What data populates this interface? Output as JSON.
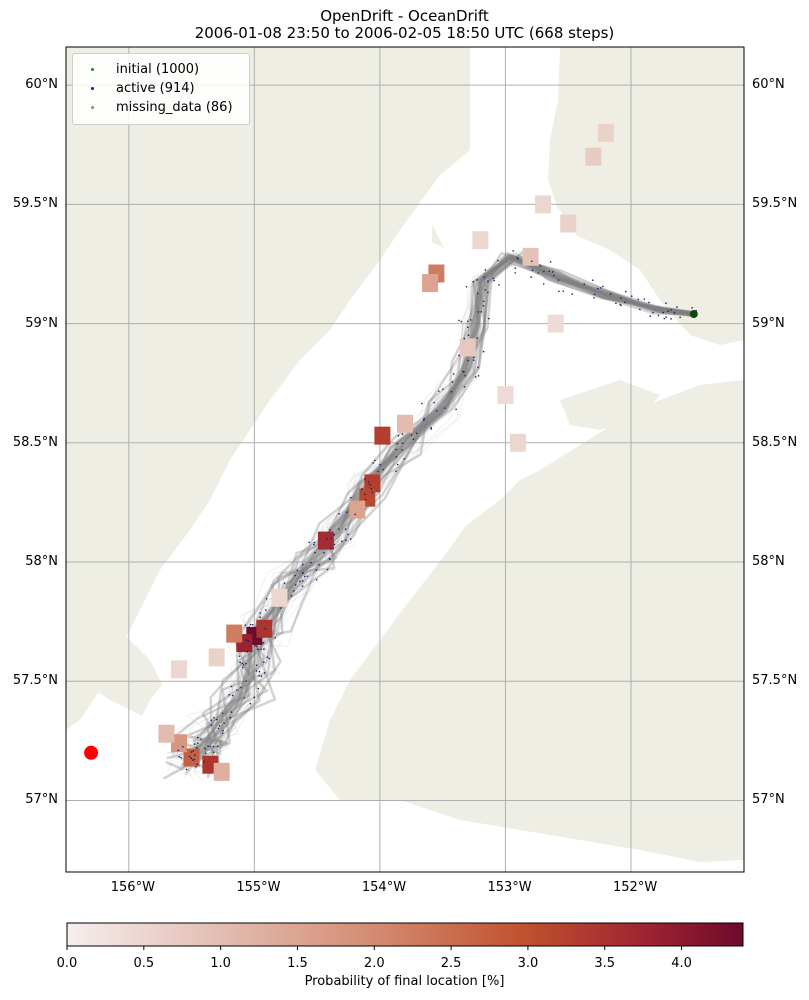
{
  "title": {
    "line1": "OpenDrift - OceanDrift",
    "line2": "2006-01-08 23:50 to 2006-02-05 18:50 UTC (668 steps)"
  },
  "map": {
    "lon_range": [
      -156.5,
      -151.1
    ],
    "lat_range": [
      56.7,
      60.16
    ],
    "lon_ticks": [
      "156°W",
      "155°W",
      "154°W",
      "153°W",
      "152°W"
    ],
    "lat_ticks": [
      "60°N",
      "59.5°N",
      "59°N",
      "58.5°N",
      "58°N",
      "57.5°N",
      "57°N"
    ],
    "grid": true,
    "colors": {
      "land": "#eeeee4",
      "ocean": "#ffffff",
      "grid": "#b0b0b0",
      "trajectory": "#808080",
      "active_particle": "#1a1a66",
      "seed_marker": "#ff0000",
      "initial_marker": "#0c4a0c"
    },
    "seed_point": {
      "lon": -156.3,
      "lat": 57.2
    },
    "initial_point": {
      "lon": -151.5,
      "lat": 59.04
    }
  },
  "legend": {
    "placement": "top-left",
    "items": [
      {
        "label": "initial (1000)",
        "color": "#2e7d32"
      },
      {
        "label": "active (914)",
        "color": "#1a1a8c"
      },
      {
        "label": "missing_data (86)",
        "color": "#9e8a6b"
      }
    ]
  },
  "colorbar": {
    "label": "Probability of final location [%]",
    "ticks": [
      "0.0",
      "0.5",
      "1.0",
      "1.5",
      "2.0",
      "2.5",
      "3.0",
      "3.5",
      "4.0"
    ],
    "range": [
      0,
      4.4
    ],
    "colormap": [
      "#f6eeee",
      "#e5c3b9",
      "#d48c73",
      "#c0502e",
      "#a02531",
      "#6e0a2b"
    ]
  },
  "chart_data": {
    "type": "heatmap",
    "title": "OpenDrift - OceanDrift",
    "subtitle": "2006-01-08 23:50 to 2006-02-05 18:50 UTC (668 steps)",
    "xlabel": "",
    "ylabel": "",
    "xlim": [
      -156.5,
      -151.1
    ],
    "ylim": [
      56.7,
      60.16
    ],
    "colorbar_label": "Probability of final location [%]",
    "colorbar_range": [
      0,
      4.4
    ],
    "cells": [
      {
        "lon": -155.0,
        "lat": 57.69,
        "value": 4.4
      },
      {
        "lon": -155.08,
        "lat": 57.66,
        "value": 3.6
      },
      {
        "lon": -154.92,
        "lat": 57.72,
        "value": 3.2
      },
      {
        "lon": -155.16,
        "lat": 57.7,
        "value": 2.0
      },
      {
        "lon": -154.43,
        "lat": 58.09,
        "value": 3.4
      },
      {
        "lon": -153.98,
        "lat": 58.53,
        "value": 3.0
      },
      {
        "lon": -154.06,
        "lat": 58.33,
        "value": 3.0
      },
      {
        "lon": -154.1,
        "lat": 58.27,
        "value": 2.8
      },
      {
        "lon": -155.35,
        "lat": 57.15,
        "value": 3.2
      },
      {
        "lon": -155.5,
        "lat": 57.18,
        "value": 2.4
      },
      {
        "lon": -155.6,
        "lat": 57.24,
        "value": 1.6
      },
      {
        "lon": -153.55,
        "lat": 59.21,
        "value": 2.0
      },
      {
        "lon": -153.6,
        "lat": 59.17,
        "value": 1.4
      },
      {
        "lon": -154.18,
        "lat": 58.22,
        "value": 1.4
      },
      {
        "lon": -155.26,
        "lat": 57.12,
        "value": 1.2
      },
      {
        "lon": -155.7,
        "lat": 57.28,
        "value": 1.0
      },
      {
        "lon": -153.8,
        "lat": 58.58,
        "value": 1.0
      },
      {
        "lon": -152.8,
        "lat": 59.28,
        "value": 0.9
      },
      {
        "lon": -153.3,
        "lat": 58.9,
        "value": 0.8
      },
      {
        "lon": -152.3,
        "lat": 59.7,
        "value": 0.7
      },
      {
        "lon": -152.2,
        "lat": 59.8,
        "value": 0.6
      },
      {
        "lon": -152.7,
        "lat": 59.5,
        "value": 0.5
      },
      {
        "lon": -152.5,
        "lat": 59.42,
        "value": 0.6
      },
      {
        "lon": -155.3,
        "lat": 57.6,
        "value": 0.6
      },
      {
        "lon": -155.6,
        "lat": 57.55,
        "value": 0.5
      },
      {
        "lon": -154.8,
        "lat": 57.85,
        "value": 0.5
      },
      {
        "lon": -153.0,
        "lat": 58.7,
        "value": 0.4
      },
      {
        "lon": -152.9,
        "lat": 58.5,
        "value": 0.5
      },
      {
        "lon": -153.2,
        "lat": 59.35,
        "value": 0.5
      },
      {
        "lon": -152.6,
        "lat": 59.0,
        "value": 0.4
      }
    ]
  }
}
